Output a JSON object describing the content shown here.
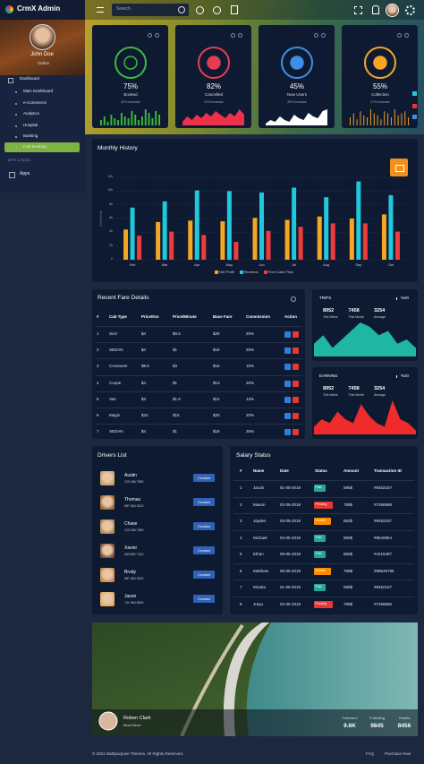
{
  "sidebar": {
    "brand": "CrmX Admin",
    "user": "John Doe",
    "status": "Online",
    "menu": [
      "Dashboard",
      "Main Dashboard",
      "e-Commerce",
      "Analytics",
      "Hospital",
      "Banking",
      "Cab Booking"
    ],
    "section": "APPS & PAGES",
    "apps": "Apps"
  },
  "header": {
    "search": "Search"
  },
  "stats": [
    {
      "value": "75%",
      "label": "Booked",
      "change": "20% Increase",
      "kind": "bar",
      "color": "#3cb93c",
      "spark": [
        3,
        5,
        2,
        6,
        4,
        3,
        7,
        5,
        4,
        8,
        6,
        3,
        5,
        9,
        7,
        4,
        8,
        6
      ]
    },
    {
      "value": "82%",
      "label": "Cancelled",
      "change": "41% Increase",
      "kind": "area",
      "color": "#f0304a",
      "spark": [
        2,
        5,
        3,
        6,
        4,
        7,
        5,
        8,
        6,
        4,
        7,
        5,
        9,
        6
      ]
    },
    {
      "value": "45%",
      "label": "New Users",
      "change": "25% Increase",
      "kind": "area",
      "color": "#ffffff",
      "spark": [
        1,
        3,
        2,
        5,
        3,
        2,
        6,
        4,
        3,
        7,
        5,
        4,
        8,
        9
      ]
    },
    {
      "value": "55%",
      "label": "Collection",
      "change": "27% Increase",
      "kind": "bar",
      "color": "#f5a623",
      "spark": [
        4,
        6,
        3,
        7,
        5,
        4,
        8,
        6,
        5,
        3,
        7,
        6,
        4,
        8,
        5,
        6,
        7,
        4
      ]
    }
  ],
  "chart_data": {
    "type": "bar",
    "title": "Monthly History",
    "ylabel": "$ (thousands)",
    "categories": [
      "Feb",
      "Mar",
      "Apr",
      "May",
      "Jun",
      "Jul",
      "Aug",
      "Sep",
      "Oct"
    ],
    "series": [
      {
        "name": "Net Profit",
        "color": "#f5a623",
        "values": [
          4.4,
          5.5,
          5.7,
          5.6,
          6.1,
          5.8,
          6.3,
          6.0,
          6.6
        ]
      },
      {
        "name": "Revenue",
        "color": "#1fc8db",
        "values": [
          7.6,
          8.5,
          10.1,
          10.0,
          9.8,
          10.5,
          9.1,
          11.4,
          9.4
        ]
      },
      {
        "name": "Free Cash Flow",
        "color": "#ef3b3b",
        "values": [
          3.5,
          4.1,
          3.6,
          2.6,
          4.2,
          4.8,
          5.3,
          5.3,
          4.1
        ]
      }
    ],
    "ylim": [
      0,
      12
    ],
    "yticks": [
      0,
      {
        "value": 2,
        "label": "2k"
      },
      {
        "value": 4,
        "label": "4k"
      },
      {
        "value": 6,
        "label": "6k"
      },
      {
        "value": 8,
        "label": "8k"
      },
      {
        "value": 10,
        "label": "10k"
      },
      {
        "value": 12,
        "label": "12k"
      }
    ],
    "grid": true
  },
  "fares": {
    "title": "Recent Fare Details",
    "columns": [
      "#",
      "Cab Type",
      "Price/Km",
      "Price/Minute",
      "Base Fare",
      "Commission",
      "Action"
    ],
    "rows": [
      [
        "1",
        "SUV",
        "$4",
        "$0.5",
        "$20",
        "20%"
      ],
      [
        "2",
        "SEDAN",
        "$4",
        "$1",
        "$19",
        "25%"
      ],
      [
        "3",
        "Crossover",
        "$6.5",
        "$3",
        "$15",
        "15%"
      ],
      [
        "4",
        "Coupe",
        "$4",
        "$1",
        "$13",
        "20%"
      ],
      [
        "5",
        "Van",
        "$3",
        "$1.5",
        "$12",
        "13%"
      ],
      [
        "6",
        "Magin",
        "$22",
        "$15",
        "$20",
        "20%"
      ],
      [
        "7",
        "SEDAN",
        "$4",
        "$1",
        "$19",
        "25%"
      ]
    ]
  },
  "trips": {
    "title": "TRIPS",
    "change": "%20",
    "color": "#1fb6a4",
    "stats": [
      {
        "value": "8952",
        "label": "This Week"
      },
      {
        "value": "7458",
        "label": "This Month"
      },
      {
        "value": "3254",
        "label": "Average"
      }
    ],
    "spark": [
      3,
      5,
      2,
      4,
      6,
      8,
      7,
      5,
      6,
      3,
      4,
      2
    ]
  },
  "earning": {
    "title": "EARNING",
    "change": "%20",
    "color": "#ef2b2b",
    "stats": [
      {
        "value": "8952",
        "label": "This Week"
      },
      {
        "value": "7458",
        "label": "This Month"
      },
      {
        "value": "3254",
        "label": "Average"
      }
    ],
    "spark": [
      2,
      4,
      3,
      6,
      4,
      3,
      8,
      5,
      3,
      2,
      9,
      4,
      3,
      1
    ]
  },
  "drivers": {
    "title": "Drivers List",
    "button": "Contact",
    "rows": [
      {
        "name": "Austin",
        "phone": "123 456 7890"
      },
      {
        "name": "Thomas",
        "phone": "987 654 3210"
      },
      {
        "name": "Chase",
        "phone": "123 456 7890"
      },
      {
        "name": "Xavier",
        "phone": "963 852 7410"
      },
      {
        "name": "Brody",
        "phone": "987 654 3210"
      },
      {
        "name": "Jaxon",
        "phone": "741 963 8520"
      }
    ]
  },
  "salary": {
    "title": "Salary Status",
    "columns": [
      "#",
      "Name",
      "Date",
      "Status",
      "Amount",
      "Transaction ID"
    ],
    "rows": [
      [
        "1",
        "Jacob",
        "01-05-2019",
        "Paid",
        "590$",
        "#8452157"
      ],
      [
        "2",
        "Mason",
        "02-05-2019",
        "Pending",
        "789$",
        "#7456965"
      ],
      [
        "3",
        "Jayden",
        "03-05-2019",
        "Unpaid",
        "852$",
        "#8452157"
      ],
      [
        "4",
        "Michael",
        "04-05-2019",
        "Paid",
        "950$",
        "#8540954"
      ],
      [
        "5",
        "Ethan",
        "05-05-2019",
        "Paid",
        "850$",
        "#4215487"
      ],
      [
        "6",
        "Matthew",
        "06-05-2019",
        "Unpaid",
        "785$",
        "#98546785"
      ],
      [
        "7",
        "Micaku",
        "01-05-2019",
        "Paid",
        "590$",
        "#8452157"
      ],
      [
        "8",
        "Jrayu",
        "02-05-2019",
        "Pending",
        "789$",
        "#7458965"
      ]
    ]
  },
  "profile": {
    "name": "Roben Clark",
    "role": "Best Driver",
    "stats": [
      {
        "label": "Followers",
        "value": "9.6K"
      },
      {
        "label": "Following",
        "value": "9845"
      },
      {
        "label": "Tweets",
        "value": "8456"
      }
    ]
  },
  "footer": {
    "copyright": "© 2021 Multipurpose Themes. All Rights Reserved.",
    "links": [
      "FAQ",
      "Purchase Now"
    ]
  }
}
